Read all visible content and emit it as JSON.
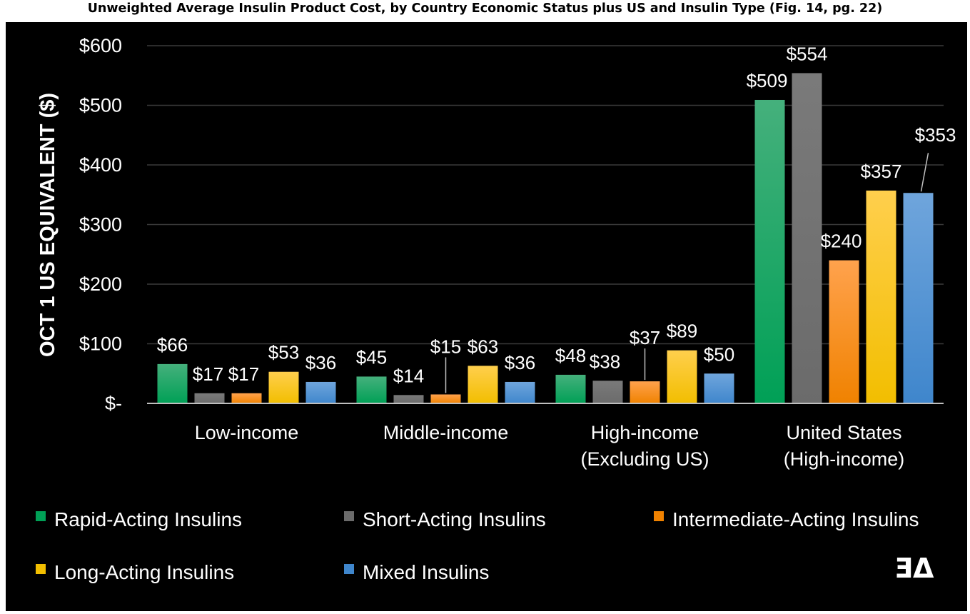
{
  "title": "Unweighted Average Insulin Product Cost, by Country Economic Status plus US and Insulin Type (Fig. 14, pg. 22)",
  "logo_text": "ƎΔ",
  "chart_data": {
    "type": "bar",
    "title": "Unweighted Average Insulin Product Cost, by Country Economic Status plus US and Insulin Type (Fig. 14, pg. 22)",
    "ylabel": "OCT 1 US EQUIVALENT ($)",
    "xlabel": "",
    "ylim": [
      0,
      600
    ],
    "yticks": [
      {
        "value": 0,
        "label": "$-"
      },
      {
        "value": 100,
        "label": "$100"
      },
      {
        "value": 200,
        "label": "$200"
      },
      {
        "value": 300,
        "label": "$300"
      },
      {
        "value": 400,
        "label": "$400"
      },
      {
        "value": 500,
        "label": "$500"
      },
      {
        "value": 600,
        "label": "$600"
      }
    ],
    "grid": true,
    "legend": "bottom",
    "categories": [
      [
        "Low-income"
      ],
      [
        "Middle-income"
      ],
      [
        "High-income",
        "(Excluding US)"
      ],
      [
        "United States",
        "(High-income)"
      ]
    ],
    "series": [
      {
        "name": "Rapid-Acting Insulins",
        "color": "#00A056",
        "light": "#45B07C",
        "values": [
          66,
          45,
          48,
          509
        ],
        "labels": [
          "$66",
          "$45",
          "$48",
          "$509"
        ]
      },
      {
        "name": "Short-Acting Insulins",
        "color": "#6B6B6B",
        "light": "#7A7A7A",
        "values": [
          17,
          14,
          38,
          554
        ],
        "labels": [
          "$17",
          "$14",
          "$38",
          "$554"
        ]
      },
      {
        "name": "Intermediate-Acting Insulins",
        "color": "#F08200",
        "light": "#FFA24D",
        "values": [
          17,
          15,
          37,
          240
        ],
        "labels": [
          "$17",
          "$15",
          "$37",
          "$240"
        ]
      },
      {
        "name": "Long-Acting Insulins",
        "color": "#F2BE00",
        "light": "#FFCF4D",
        "values": [
          53,
          63,
          89,
          357
        ],
        "labels": [
          "$53",
          "$63",
          "$89",
          "$357"
        ]
      },
      {
        "name": "Mixed Insulins",
        "color": "#3F86CC",
        "light": "#6FA5DC",
        "values": [
          36,
          36,
          50,
          353
        ],
        "labels": [
          "$36",
          "$36",
          "$50",
          "$353"
        ]
      }
    ]
  }
}
